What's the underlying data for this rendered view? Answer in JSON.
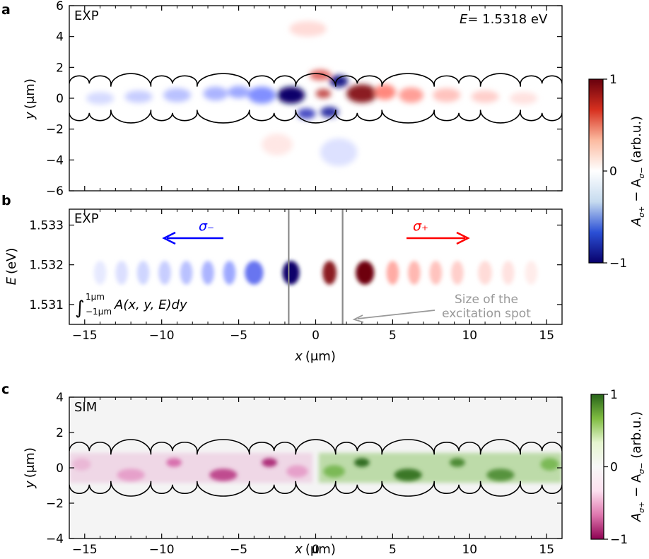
{
  "chart_data": [
    {
      "panel": "a",
      "type": "heatmap",
      "tag": "EXP",
      "annotation_label": "E",
      "annotation_value": "= 1.5318 eV",
      "xlim": [
        -16,
        16
      ],
      "ylim": [
        -6,
        6
      ],
      "ylabel_main": "y",
      "ylabel_unit": "(μm)",
      "yticks": [
        -6,
        -4,
        -2,
        0,
        2,
        4,
        6
      ],
      "xticks": [
        -15,
        -10,
        -5,
        0,
        5,
        10,
        15
      ],
      "xtick_labels_shown": false,
      "colorscale": "blue-white-red",
      "clim": [
        -1,
        1
      ],
      "features": [
        {
          "x": -1.6,
          "y": 0.2,
          "value": -1.0,
          "sx": 0.9,
          "sy": 0.55
        },
        {
          "x": -0.6,
          "y": -1.0,
          "value": -0.7,
          "sx": 0.6,
          "sy": 0.35
        },
        {
          "x": 0.9,
          "y": -0.9,
          "value": -0.8,
          "sx": 0.6,
          "sy": 0.35
        },
        {
          "x": 1.5,
          "y": 1.1,
          "value": -0.9,
          "sx": 0.6,
          "sy": 0.4
        },
        {
          "x": 0.3,
          "y": 1.5,
          "value": 0.6,
          "sx": 0.7,
          "sy": 0.35
        },
        {
          "x": 0.5,
          "y": 0.3,
          "value": 0.7,
          "sx": 0.5,
          "sy": 0.3
        },
        {
          "x": 3.0,
          "y": 0.3,
          "value": 0.9,
          "sx": 1.0,
          "sy": 0.6
        },
        {
          "x": 4.5,
          "y": 0.4,
          "value": 0.5,
          "sx": 0.7,
          "sy": 0.5
        },
        {
          "x": 6.2,
          "y": 0.2,
          "value": 0.4,
          "sx": 0.8,
          "sy": 0.5
        },
        {
          "x": 8.5,
          "y": 0.2,
          "value": 0.25,
          "sx": 0.9,
          "sy": 0.45
        },
        {
          "x": 11.0,
          "y": 0.1,
          "value": 0.2,
          "sx": 0.9,
          "sy": 0.4
        },
        {
          "x": 13.5,
          "y": 0.0,
          "value": 0.12,
          "sx": 0.9,
          "sy": 0.4
        },
        {
          "x": -3.5,
          "y": 0.2,
          "value": -0.45,
          "sx": 0.9,
          "sy": 0.55
        },
        {
          "x": -5.0,
          "y": 0.4,
          "value": -0.35,
          "sx": 0.7,
          "sy": 0.4
        },
        {
          "x": -6.5,
          "y": 0.3,
          "value": -0.3,
          "sx": 0.8,
          "sy": 0.45
        },
        {
          "x": -9.0,
          "y": 0.2,
          "value": -0.25,
          "sx": 0.9,
          "sy": 0.45
        },
        {
          "x": -11.5,
          "y": 0.1,
          "value": -0.2,
          "sx": 0.9,
          "sy": 0.4
        },
        {
          "x": -14.0,
          "y": 0.0,
          "value": -0.15,
          "sx": 0.9,
          "sy": 0.4
        },
        {
          "x": -0.5,
          "y": 4.5,
          "value": 0.15,
          "sx": 1.2,
          "sy": 0.5
        },
        {
          "x": 1.5,
          "y": -3.5,
          "value": -0.12,
          "sx": 1.2,
          "sy": 0.9
        },
        {
          "x": -2.5,
          "y": -3.0,
          "value": 0.1,
          "sx": 1.0,
          "sy": 0.7
        }
      ]
    },
    {
      "panel": "b",
      "type": "heatmap",
      "tag": "EXP",
      "xlim": [
        -16,
        16
      ],
      "ylim": [
        1.5305,
        1.5334
      ],
      "xlabel_main": "x",
      "xlabel_unit": "(μm)",
      "ylabel_main": "E",
      "ylabel_unit": "(eV)",
      "xticks": [
        -15,
        -10,
        -5,
        0,
        5,
        10,
        15
      ],
      "yticks": [
        1.531,
        1.532,
        1.533
      ],
      "ytick_labels": [
        "1.531",
        "1.532",
        "1.533"
      ],
      "colorscale": "blue-white-red",
      "clim": [
        -1,
        1
      ],
      "integral_label": "∫",
      "integral_upper": "1μm",
      "integral_lower": "−1μm",
      "integrand": "A(x, y, E)dy",
      "sigma_minus": "σ₋",
      "sigma_plus": "σ₊",
      "spot_lines_x": [
        -1.75,
        1.75
      ],
      "spot_text_line1": "Size of the",
      "spot_text_line2": "excitation spot",
      "blobs": [
        {
          "x": -1.6,
          "value": -1.0,
          "sx": 0.55
        },
        {
          "x": -4.0,
          "value": -0.55,
          "sx": 0.6
        },
        {
          "x": -5.6,
          "value": -0.35,
          "sx": 0.4
        },
        {
          "x": -7.0,
          "value": -0.3,
          "sx": 0.4
        },
        {
          "x": -8.4,
          "value": -0.25,
          "sx": 0.4
        },
        {
          "x": -9.8,
          "value": -0.2,
          "sx": 0.4
        },
        {
          "x": -11.2,
          "value": -0.17,
          "sx": 0.4
        },
        {
          "x": -12.6,
          "value": -0.13,
          "sx": 0.4
        },
        {
          "x": -14.0,
          "value": -0.09,
          "sx": 0.4
        },
        {
          "x": 0.9,
          "value": 0.9,
          "sx": 0.45
        },
        {
          "x": 3.2,
          "value": 1.0,
          "sx": 0.6
        },
        {
          "x": 5.0,
          "value": 0.35,
          "sx": 0.4
        },
        {
          "x": 6.4,
          "value": 0.3,
          "sx": 0.4
        },
        {
          "x": 7.8,
          "value": 0.25,
          "sx": 0.4
        },
        {
          "x": 9.2,
          "value": 0.2,
          "sx": 0.4
        },
        {
          "x": 11.0,
          "value": 0.15,
          "sx": 0.45
        },
        {
          "x": 12.5,
          "value": 0.12,
          "sx": 0.4
        },
        {
          "x": 14.0,
          "value": 0.08,
          "sx": 0.4
        }
      ],
      "blob_center_E": 1.5318,
      "blob_sigma_E": 0.0003
    },
    {
      "panel": "c",
      "type": "heatmap",
      "tag": "SIM",
      "xlim": [
        -16,
        16
      ],
      "ylim": [
        -4,
        4
      ],
      "xlabel_main": "x",
      "xlabel_unit": "(μm)",
      "ylabel_main": "y",
      "ylabel_unit": "(μm)",
      "xticks": [
        -15,
        -10,
        -5,
        0,
        5,
        10,
        15
      ],
      "yticks": [
        -4,
        -2,
        0,
        2,
        4
      ],
      "colorscale": "pink-white-green",
      "clim": [
        -1,
        1
      ],
      "background": "#f4f4f4",
      "blobs": [
        {
          "x": -15.2,
          "y": 0.2,
          "value": -0.25,
          "sx": 0.6,
          "sy": 0.35
        },
        {
          "x": -12.0,
          "y": -0.4,
          "value": -0.35,
          "sx": 0.9,
          "sy": 0.35
        },
        {
          "x": -9.2,
          "y": 0.3,
          "value": -0.55,
          "sx": 0.5,
          "sy": 0.25
        },
        {
          "x": -6.0,
          "y": -0.4,
          "value": -0.7,
          "sx": 0.9,
          "sy": 0.35
        },
        {
          "x": -3.0,
          "y": 0.3,
          "value": -0.8,
          "sx": 0.5,
          "sy": 0.25
        },
        {
          "x": -1.2,
          "y": -0.2,
          "value": -0.35,
          "sx": 0.7,
          "sy": 0.35
        },
        {
          "x": 1.2,
          "y": -0.2,
          "value": 0.55,
          "sx": 0.7,
          "sy": 0.35
        },
        {
          "x": 3.0,
          "y": 0.3,
          "value": 0.95,
          "sx": 0.5,
          "sy": 0.25
        },
        {
          "x": 6.0,
          "y": -0.4,
          "value": 0.9,
          "sx": 0.9,
          "sy": 0.35
        },
        {
          "x": 9.2,
          "y": 0.3,
          "value": 0.8,
          "sx": 0.5,
          "sy": 0.25
        },
        {
          "x": 12.0,
          "y": -0.4,
          "value": 0.75,
          "sx": 0.9,
          "sy": 0.35
        },
        {
          "x": 15.2,
          "y": 0.2,
          "value": 0.55,
          "sx": 0.6,
          "sy": 0.35
        }
      ],
      "haze": [
        {
          "xmin": -16,
          "xmax": -0.2,
          "value": -0.12
        },
        {
          "xmin": 0.2,
          "xmax": 16,
          "value": 0.25
        }
      ]
    }
  ],
  "colorbars": [
    {
      "id": "colorbar-top",
      "ticks": [
        "1",
        "0",
        "−1"
      ],
      "label": "A",
      "label_sub1": "σ+",
      "label_mid": " − A",
      "label_sub2": "σ−",
      "label_unit": " (arb.u.)",
      "colors": [
        "#67000d",
        "#d7301f",
        "#fcbba1",
        "#ffffff",
        "#c6dbef",
        "#2b50d6",
        "#08006b"
      ]
    },
    {
      "id": "colorbar-bottom",
      "ticks": [
        "1",
        "0",
        "−1"
      ],
      "label": "A",
      "label_sub1": "σ+",
      "label_mid": " − A",
      "label_sub2": "σ−",
      "label_unit": " (arb.u.)",
      "colors": [
        "#276419",
        "#7fbc41",
        "#e6f5d0",
        "#f7f7f7",
        "#fde0ef",
        "#de77ae",
        "#8e0152"
      ]
    }
  ],
  "panel_letters": [
    "a",
    "b",
    "c"
  ],
  "waveguide": {
    "note": "Scalloped waveguide outline drawn in panels a and c"
  }
}
